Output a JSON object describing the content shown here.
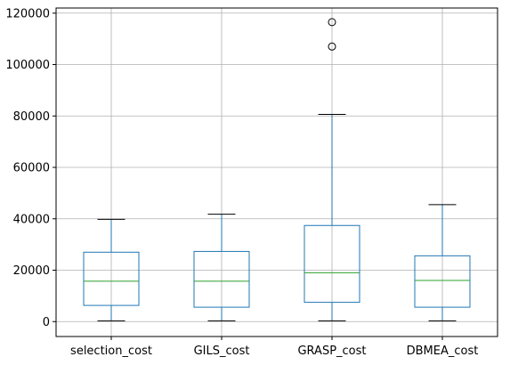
{
  "chart_data": {
    "type": "box",
    "title": "",
    "xlabel": "",
    "ylabel": "",
    "grid": true,
    "ylim": [
      -5800,
      122000
    ],
    "yticks": [
      0,
      20000,
      40000,
      60000,
      80000,
      100000,
      120000
    ],
    "ytick_labels": [
      "0",
      "20000",
      "40000",
      "60000",
      "80000",
      "100000",
      "120000"
    ],
    "categories": [
      "selection_cost",
      "GILS_cost",
      "GRASP_cost",
      "DBMEA_cost"
    ],
    "colors": {
      "box": "#1f77b4",
      "median": "#2ca02c",
      "cap": "#000000",
      "grid": "#b0b0b0",
      "flier": "#000000"
    },
    "boxes": [
      {
        "whisker_low": 300,
        "q1": 6300,
        "median": 15700,
        "q3": 27000,
        "whisker_high": 39800,
        "fliers": []
      },
      {
        "whisker_low": 300,
        "q1": 5600,
        "median": 15700,
        "q3": 27300,
        "whisker_high": 41800,
        "fliers": []
      },
      {
        "whisker_low": 300,
        "q1": 7500,
        "median": 19000,
        "q3": 37400,
        "whisker_high": 80600,
        "fliers": [
          107000,
          116500
        ]
      },
      {
        "whisker_low": 300,
        "q1": 5600,
        "median": 16000,
        "q3": 25600,
        "whisker_high": 45500,
        "fliers": []
      }
    ]
  }
}
